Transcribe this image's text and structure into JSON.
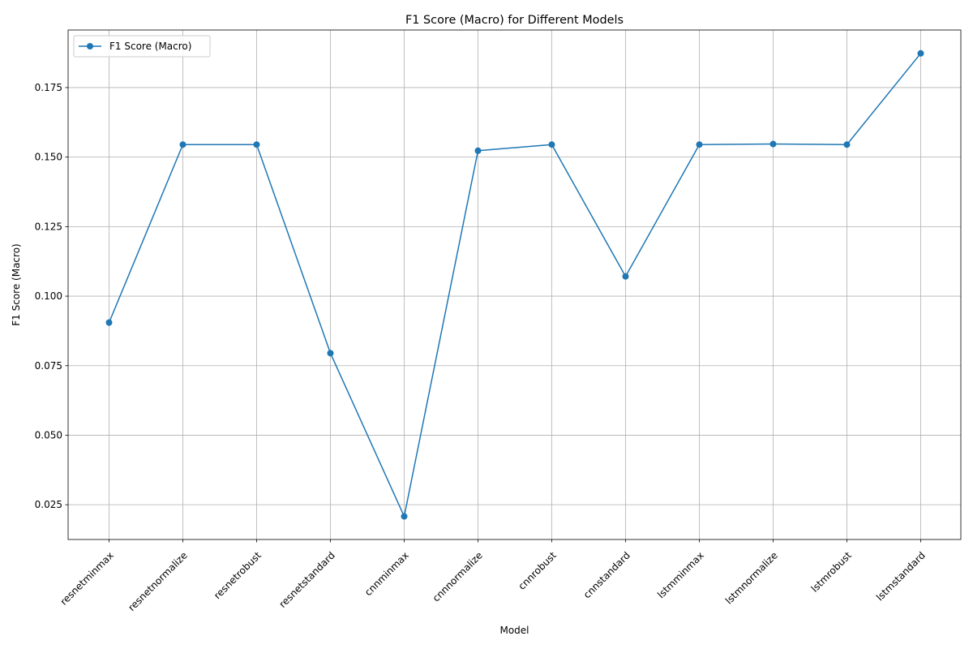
{
  "chart_data": {
    "type": "line",
    "title": "F1 Score (Macro) for Different Models",
    "xlabel": "Model",
    "ylabel": "F1 Score (Macro)",
    "categories": [
      "resnetminmax",
      "resnetnormalize",
      "resnetrobust",
      "resnetstandard",
      "cnnminmax",
      "cnnnormalize",
      "cnnrobust",
      "cnnstandard",
      "lstmminmax",
      "lstmnormalize",
      "lstmrobust",
      "lstmstandard"
    ],
    "series": [
      {
        "name": "F1 Score (Macro)",
        "values": [
          0.0905,
          0.1545,
          0.1545,
          0.0795,
          0.0208,
          0.1523,
          0.1545,
          0.1071,
          0.1545,
          0.1547,
          0.1545,
          0.1873
        ],
        "color": "#1f77b4",
        "marker": "circle"
      }
    ],
    "ylim": [
      0.0125,
      0.1957
    ],
    "yticks": [
      "0.025",
      "0.050",
      "0.075",
      "0.100",
      "0.125",
      "0.150",
      "0.175"
    ],
    "grid": true,
    "legend": "top-left"
  }
}
